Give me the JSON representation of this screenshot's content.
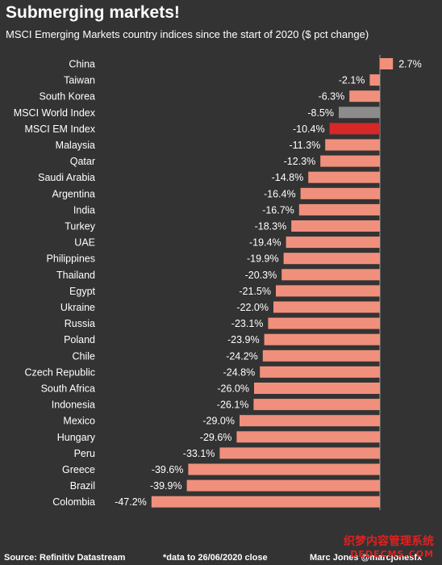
{
  "header": {
    "title": "Submerging markets!",
    "subtitle": "MSCI Emerging Markets country indices since the start of 2020 ($ pct change)"
  },
  "footer": {
    "source": "Source: Refinitiv Datastream",
    "note": "*data to 26/06/2020 close",
    "author": "Marc Jones @marcjonesfx"
  },
  "watermark": {
    "line1": "织梦内容管理系统",
    "line2": "DEDECMS.COM"
  },
  "colors": {
    "background": "#333333",
    "bar_default": "#f0907c",
    "bar_world": "#8c8c8c",
    "bar_em": "#d62828"
  },
  "chart_data": {
    "type": "bar",
    "orientation": "horizontal",
    "categories": [
      "China",
      "Taiwan",
      "South Korea",
      "MSCI World Index",
      "MSCI EM Index",
      "Malaysia",
      "Qatar",
      "Saudi Arabia",
      "Argentina",
      "India",
      "Turkey",
      "UAE",
      "Philippines",
      "Thailand",
      "Egypt",
      "Ukraine",
      "Russia",
      "Poland",
      "Chile",
      "Czech Republic",
      "South Africa",
      "Indonesia",
      "Mexico",
      "Hungary",
      "Peru",
      "Greece",
      "Brazil",
      "Colombia"
    ],
    "values": [
      2.7,
      -2.1,
      -6.3,
      -8.5,
      -10.4,
      -11.3,
      -12.3,
      -14.8,
      -16.4,
      -16.7,
      -18.3,
      -19.4,
      -19.9,
      -20.3,
      -21.5,
      -22.0,
      -23.1,
      -23.9,
      -24.2,
      -24.8,
      -26.0,
      -26.1,
      -29.0,
      -29.6,
      -33.1,
      -39.6,
      -39.9,
      -47.2
    ],
    "data_labels": [
      "2.7%",
      "-2.1%",
      "-6.3%",
      "-8.5%",
      "-10.4%",
      "-11.3%",
      "-12.3%",
      "-14.8%",
      "-16.4%",
      "-16.7%",
      "-18.3%",
      "-19.4%",
      "-19.9%",
      "-20.3%",
      "-21.5%",
      "-22.0%",
      "-23.1%",
      "-23.9%",
      "-24.2%",
      "-24.8%",
      "-26.0%",
      "-26.1%",
      "-29.0%",
      "-29.6%",
      "-33.1%",
      "-39.6%",
      "-39.9%",
      "-47.2%"
    ],
    "highlight": {
      "MSCI World Index": "#8c8c8c",
      "MSCI EM Index": "#d62828"
    },
    "xlim": [
      -47.2,
      2.7
    ],
    "grid": false,
    "legend": "none"
  }
}
